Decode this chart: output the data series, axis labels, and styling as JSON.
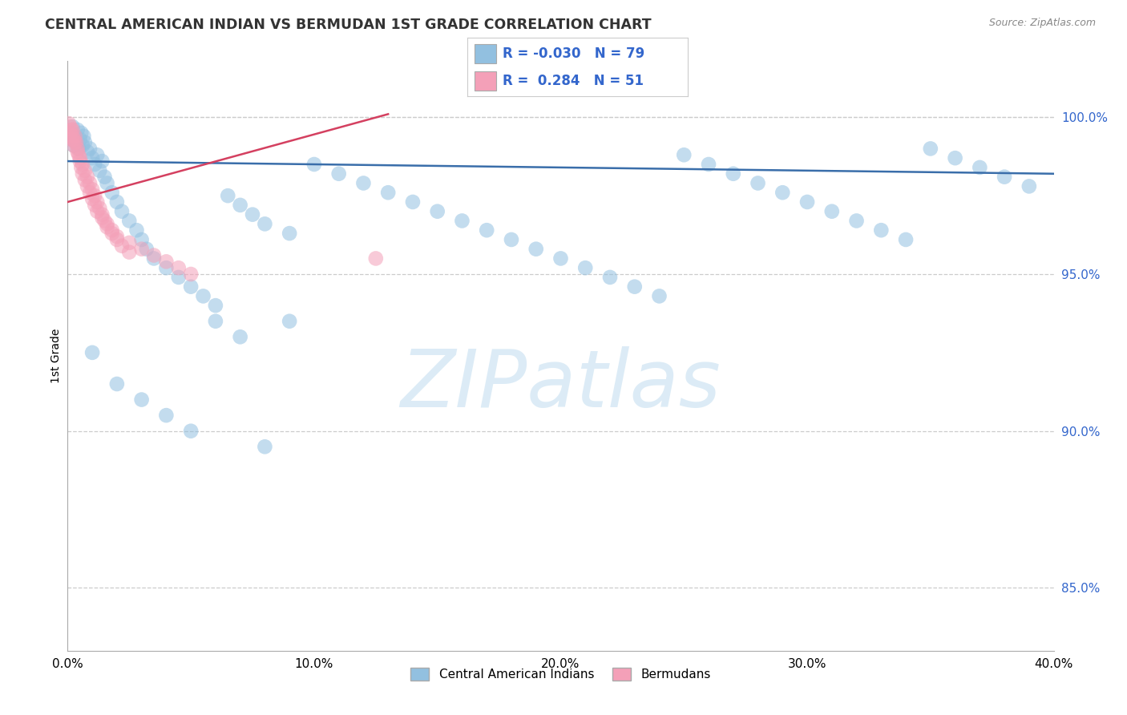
{
  "title": "CENTRAL AMERICAN INDIAN VS BERMUDAN 1ST GRADE CORRELATION CHART",
  "source": "Source: ZipAtlas.com",
  "ylabel": "1st Grade",
  "xlim": [
    0.0,
    40.0
  ],
  "ylim": [
    83.0,
    101.8
  ],
  "yticks": [
    85.0,
    90.0,
    95.0,
    100.0
  ],
  "xtick_positions": [
    0.0,
    10.0,
    20.0,
    30.0,
    40.0
  ],
  "xtick_labels": [
    "0.0%",
    "10.0%",
    "20.0%",
    "30.0%",
    "40.0%"
  ],
  "legend_blue_r": "-0.030",
  "legend_blue_n": "79",
  "legend_pink_r": "0.284",
  "legend_pink_n": "51",
  "blue_color": "#92c0e0",
  "pink_color": "#f4a0b8",
  "blue_line_color": "#3a6eaa",
  "pink_line_color": "#d44060",
  "blue_trend_x0": 0.0,
  "blue_trend_x1": 40.0,
  "blue_trend_y0": 98.6,
  "blue_trend_y1": 98.2,
  "pink_trend_x0": 0.0,
  "pink_trend_x1": 13.0,
  "pink_trend_y0": 97.3,
  "pink_trend_y1": 100.1,
  "watermark_text": "ZIPatlas",
  "grid_color": "#cccccc",
  "tick_color": "#3366cc",
  "bottom_legend_labels": [
    "Central American Indians",
    "Bermudans"
  ],
  "blue_x": [
    0.1,
    0.15,
    0.2,
    0.25,
    0.3,
    0.35,
    0.4,
    0.45,
    0.5,
    0.55,
    0.6,
    0.65,
    0.7,
    0.8,
    0.9,
    1.0,
    1.1,
    1.2,
    1.3,
    1.4,
    1.5,
    1.6,
    1.8,
    2.0,
    2.2,
    2.5,
    2.8,
    3.0,
    3.2,
    3.5,
    4.0,
    4.5,
    5.0,
    5.5,
    6.0,
    6.5,
    7.0,
    7.5,
    8.0,
    9.0,
    10.0,
    11.0,
    12.0,
    13.0,
    14.0,
    15.0,
    16.0,
    17.0,
    18.0,
    19.0,
    20.0,
    21.0,
    22.0,
    23.0,
    24.0,
    25.0,
    26.0,
    27.0,
    28.0,
    29.0,
    30.0,
    31.0,
    32.0,
    33.0,
    34.0,
    35.0,
    36.0,
    37.0,
    38.0,
    39.0,
    1.0,
    2.0,
    3.0,
    4.0,
    5.0,
    6.0,
    7.0,
    8.0,
    9.0
  ],
  "blue_y": [
    99.5,
    99.3,
    99.7,
    99.1,
    99.4,
    99.2,
    99.6,
    99.0,
    99.3,
    99.5,
    99.1,
    99.4,
    99.2,
    98.9,
    99.0,
    98.7,
    98.5,
    98.8,
    98.3,
    98.6,
    98.1,
    97.9,
    97.6,
    97.3,
    97.0,
    96.7,
    96.4,
    96.1,
    95.8,
    95.5,
    95.2,
    94.9,
    94.6,
    94.3,
    94.0,
    97.5,
    97.2,
    96.9,
    96.6,
    96.3,
    98.5,
    98.2,
    97.9,
    97.6,
    97.3,
    97.0,
    96.7,
    96.4,
    96.1,
    95.8,
    95.5,
    95.2,
    94.9,
    94.6,
    94.3,
    98.8,
    98.5,
    98.2,
    97.9,
    97.6,
    97.3,
    97.0,
    96.7,
    96.4,
    96.1,
    99.0,
    98.7,
    98.4,
    98.1,
    97.8,
    92.5,
    91.5,
    91.0,
    90.5,
    90.0,
    93.5,
    93.0,
    89.5,
    93.5
  ],
  "pink_x": [
    0.05,
    0.1,
    0.15,
    0.2,
    0.25,
    0.3,
    0.35,
    0.4,
    0.45,
    0.5,
    0.55,
    0.6,
    0.7,
    0.8,
    0.9,
    1.0,
    1.1,
    1.2,
    1.4,
    1.6,
    1.8,
    2.0,
    2.5,
    3.0,
    3.5,
    4.0,
    4.5,
    5.0,
    0.1,
    0.2,
    0.3,
    0.4,
    0.5,
    0.6,
    0.7,
    0.8,
    0.9,
    1.0,
    1.1,
    1.2,
    1.3,
    1.4,
    1.5,
    1.6,
    1.8,
    2.0,
    2.2,
    2.5,
    0.15,
    0.25,
    12.5
  ],
  "pink_y": [
    99.8,
    99.5,
    99.3,
    99.6,
    99.1,
    99.4,
    99.2,
    99.0,
    98.8,
    98.6,
    98.4,
    98.2,
    98.0,
    97.8,
    97.6,
    97.4,
    97.2,
    97.0,
    96.8,
    96.6,
    96.4,
    96.2,
    96.0,
    95.8,
    95.6,
    95.4,
    95.2,
    95.0,
    99.7,
    99.4,
    99.2,
    98.9,
    98.7,
    98.5,
    98.3,
    98.1,
    97.9,
    97.7,
    97.5,
    97.3,
    97.1,
    96.9,
    96.7,
    96.5,
    96.3,
    96.1,
    95.9,
    95.7,
    99.6,
    99.3,
    95.5
  ]
}
